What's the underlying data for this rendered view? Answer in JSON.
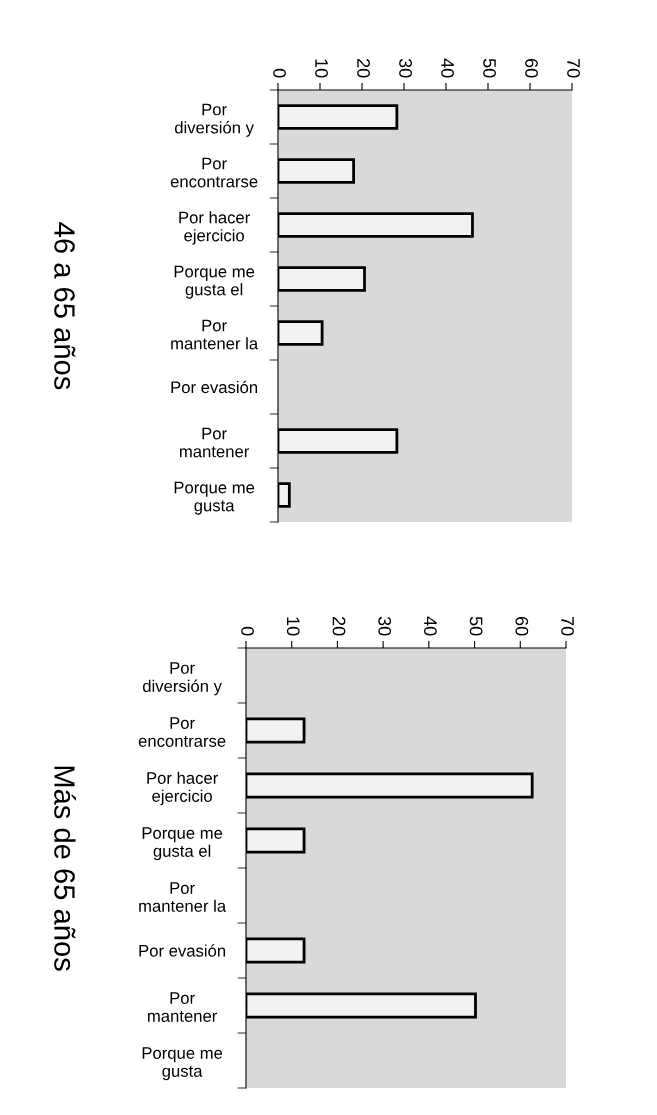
{
  "chart_data": [
    {
      "type": "bar",
      "orientation": "horizontal",
      "title": "46 a 65 años",
      "categories": [
        "Por\ndiversión y",
        "Por\nencontrarse",
        "Por hacer\nejercicio",
        "Porque me\ngusta el",
        "Por\nmantener la",
        "Por evasión",
        "Por\nmantener",
        "Porque me\ngusta"
      ],
      "values": [
        28.3,
        18,
        46.3,
        20.6,
        10.5,
        0,
        28.3,
        2.7
      ],
      "color": "#f2f2f2",
      "xlim": [
        0,
        70
      ],
      "xticks": [
        0,
        10,
        20,
        30,
        40,
        50,
        60,
        70
      ],
      "grid": false,
      "legend": false
    },
    {
      "type": "bar",
      "orientation": "horizontal",
      "title": "Más de 65 años",
      "categories": [
        "Por\ndiversión y",
        "Por\nencontrarse",
        "Por hacer\nejercicio",
        "Porque me\ngusta el",
        "Por\nmantener la",
        "Por evasión",
        "Por\nmantener",
        "Porque me\ngusta"
      ],
      "values": [
        0,
        12.7,
        62.6,
        12.7,
        0,
        12.7,
        50.2,
        0
      ],
      "color": "#f2f2f2",
      "xlim": [
        0,
        70
      ],
      "xticks": [
        0,
        10,
        20,
        30,
        40,
        50,
        60,
        70
      ],
      "grid": false,
      "legend": false
    }
  ]
}
